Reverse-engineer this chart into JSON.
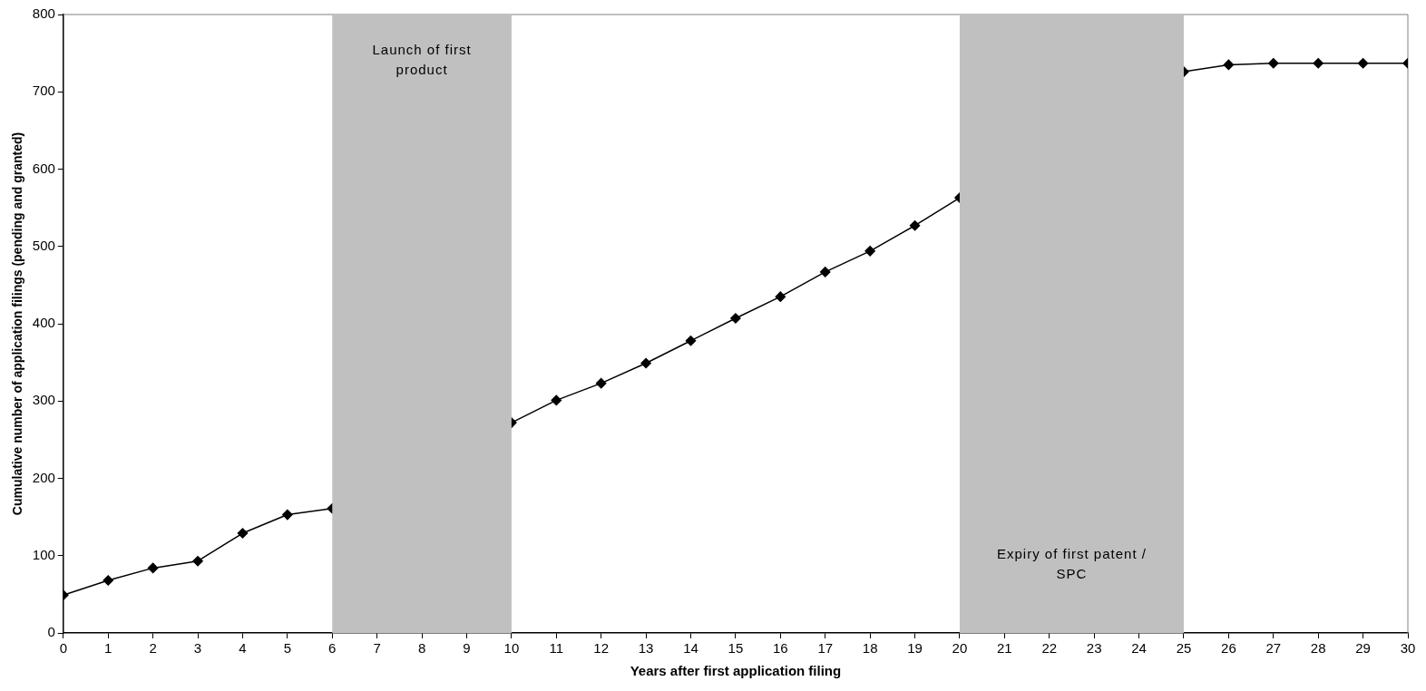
{
  "chart_data": {
    "type": "line",
    "xlabel": "Years after first application filing",
    "ylabel": "Cumulative number of application filings (pending and granted)",
    "x": [
      0,
      1,
      2,
      3,
      4,
      5,
      6,
      7,
      8,
      9,
      10,
      11,
      12,
      13,
      14,
      15,
      16,
      17,
      18,
      19,
      20,
      21,
      22,
      23,
      24,
      25,
      26,
      27,
      28,
      29,
      30
    ],
    "series": [
      {
        "color": "#000000",
        "values": [
          49,
          68,
          84,
          93,
          129,
          153,
          161,
          null,
          null,
          null,
          272,
          301,
          323,
          349,
          378,
          407,
          435,
          467,
          494,
          527,
          563,
          null,
          null,
          null,
          null,
          726,
          735,
          737,
          737,
          737,
          737
        ]
      }
    ],
    "xlim": [
      0,
      30
    ],
    "xticks": [
      0,
      1,
      2,
      3,
      4,
      5,
      6,
      7,
      8,
      9,
      10,
      11,
      12,
      13,
      14,
      15,
      16,
      17,
      18,
      19,
      20,
      21,
      22,
      23,
      24,
      25,
      26,
      27,
      28,
      29,
      30
    ],
    "ylim": [
      0,
      800
    ],
    "yticks": [
      0,
      100,
      200,
      300,
      400,
      500,
      600,
      700,
      800
    ],
    "bands": [
      {
        "axis": "x",
        "from": 6,
        "to": 10,
        "label": "Launch of first product",
        "color": "#c0c0c0"
      },
      {
        "axis": "x",
        "from": 20,
        "to": 25,
        "label": "Expiry of first patent / SPC",
        "color": "#c0c0c0"
      }
    ],
    "grid": false,
    "legend": false,
    "marker": "diamond",
    "line_style": "solid"
  }
}
